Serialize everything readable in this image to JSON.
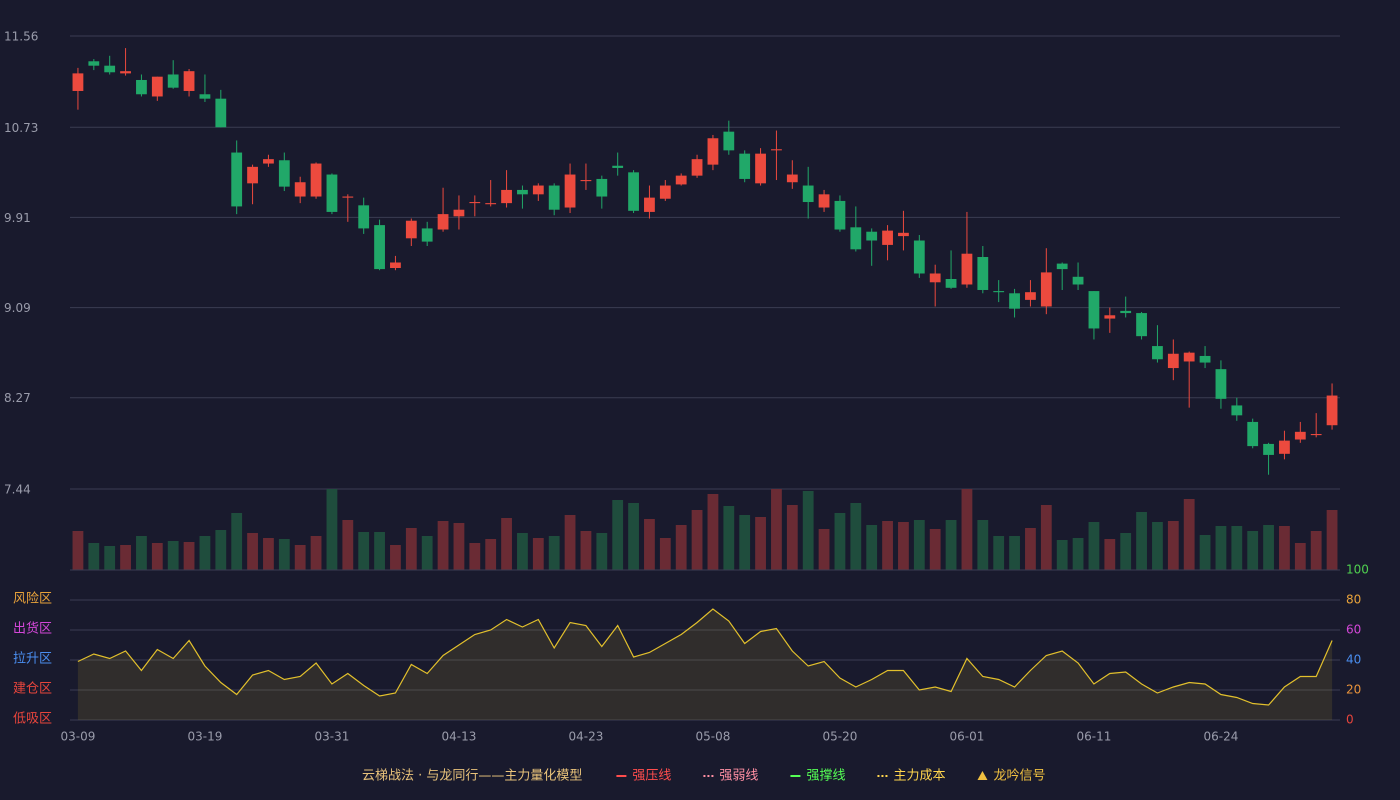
{
  "chart_data": [
    {
      "type": "candlestick",
      "categories": [
        "03-09",
        null,
        null,
        null,
        null,
        null,
        null,
        null,
        "03-19",
        null,
        null,
        null,
        null,
        null,
        null,
        null,
        "03-31",
        null,
        null,
        null,
        null,
        null,
        null,
        null,
        "04-13",
        null,
        null,
        null,
        null,
        null,
        null,
        null,
        "04-23",
        null,
        null,
        null,
        null,
        null,
        null,
        null,
        "05-08",
        null,
        null,
        null,
        null,
        null,
        null,
        null,
        "05-20",
        null,
        null,
        null,
        null,
        null,
        null,
        null,
        "06-01",
        null,
        null,
        null,
        null,
        null,
        null,
        null,
        "06-11",
        null,
        null,
        null,
        null,
        null,
        null,
        null,
        "06-24",
        null,
        null,
        null,
        null,
        null,
        null,
        null
      ],
      "open": [
        11.06,
        11.33,
        11.29,
        11.22,
        11.16,
        11.01,
        11.21,
        11.06,
        11.03,
        10.99,
        10.5,
        10.22,
        10.4,
        10.43,
        10.1,
        10.1,
        10.3,
        10.09,
        10.02,
        9.84,
        9.45,
        9.72,
        9.81,
        9.8,
        9.92,
        10.04,
        10.03,
        10.04,
        10.16,
        10.12,
        10.2,
        10.0,
        10.24,
        10.26,
        10.38,
        10.32,
        9.96,
        10.08,
        10.21,
        10.29,
        10.39,
        10.69,
        10.49,
        10.22,
        10.52,
        10.23,
        10.2,
        10.0,
        10.06,
        9.82,
        9.78,
        9.66,
        9.74,
        9.7,
        9.32,
        9.35,
        9.3,
        9.55,
        9.24,
        9.22,
        9.16,
        9.1,
        9.49,
        9.37,
        9.24,
        8.99,
        9.06,
        9.04,
        8.74,
        8.54,
        8.6,
        8.65,
        8.53,
        8.2,
        8.05,
        7.85,
        7.76,
        7.89,
        7.93,
        8.02
      ],
      "high": [
        11.27,
        11.35,
        11.38,
        11.45,
        11.21,
        11.19,
        11.34,
        11.26,
        11.21,
        11.07,
        10.61,
        10.39,
        10.48,
        10.5,
        10.28,
        10.41,
        10.31,
        10.12,
        10.09,
        9.89,
        9.56,
        9.9,
        9.87,
        10.18,
        10.11,
        10.11,
        10.25,
        10.34,
        10.2,
        10.22,
        10.22,
        10.4,
        10.4,
        10.29,
        10.5,
        10.34,
        10.2,
        10.25,
        10.31,
        10.48,
        10.66,
        10.79,
        10.52,
        10.54,
        10.7,
        10.43,
        10.37,
        10.16,
        10.11,
        10.01,
        9.81,
        9.84,
        9.97,
        9.75,
        9.48,
        9.61,
        9.96,
        9.65,
        9.34,
        9.26,
        9.34,
        9.63,
        9.5,
        9.5,
        9.24,
        9.09,
        9.19,
        9.05,
        8.93,
        8.8,
        8.69,
        8.74,
        8.61,
        8.27,
        8.08,
        7.86,
        7.97,
        8.05,
        8.13,
        8.4
      ],
      "low": [
        10.89,
        11.25,
        11.21,
        11.2,
        11.01,
        10.97,
        11.08,
        11.01,
        10.96,
        10.73,
        9.94,
        10.03,
        10.37,
        10.15,
        10.04,
        10.08,
        9.94,
        9.87,
        9.76,
        9.43,
        9.43,
        9.65,
        9.65,
        9.78,
        9.8,
        9.92,
        10.01,
        10.0,
        9.99,
        10.06,
        9.93,
        9.95,
        10.16,
        9.99,
        10.29,
        9.95,
        9.9,
        10.06,
        10.2,
        10.27,
        10.34,
        10.48,
        10.23,
        10.2,
        10.25,
        10.17,
        9.9,
        9.96,
        9.78,
        9.6,
        9.47,
        9.52,
        9.61,
        9.36,
        9.1,
        9.26,
        9.27,
        9.22,
        9.14,
        9.0,
        9.1,
        9.03,
        9.25,
        9.25,
        8.8,
        8.86,
        9.0,
        8.8,
        8.59,
        8.43,
        8.18,
        8.54,
        8.17,
        8.06,
        7.81,
        7.57,
        7.71,
        7.86,
        7.91,
        7.98
      ],
      "close": [
        11.22,
        11.29,
        11.23,
        11.24,
        11.03,
        11.19,
        11.09,
        11.24,
        10.99,
        10.73,
        10.01,
        10.37,
        10.44,
        10.19,
        10.23,
        10.4,
        9.96,
        10.1,
        9.81,
        9.44,
        9.5,
        9.88,
        9.69,
        9.94,
        9.98,
        10.05,
        10.04,
        10.16,
        10.12,
        10.2,
        9.98,
        10.3,
        10.25,
        10.1,
        10.36,
        9.97,
        10.09,
        10.2,
        10.29,
        10.44,
        10.63,
        10.52,
        10.26,
        10.49,
        10.53,
        10.3,
        10.05,
        10.12,
        9.8,
        9.62,
        9.7,
        9.79,
        9.77,
        9.4,
        9.4,
        9.27,
        9.58,
        9.25,
        9.23,
        9.08,
        9.23,
        9.41,
        9.44,
        9.3,
        8.9,
        9.02,
        9.04,
        8.83,
        8.62,
        8.67,
        8.68,
        8.59,
        8.26,
        8.11,
        7.83,
        7.75,
        7.88,
        7.96,
        7.94,
        8.29
      ],
      "up_color": "#ec4a3e",
      "down_color": "#21a869",
      "ylim": [
        7.44,
        11.56
      ],
      "yticks": [
        7.44,
        8.27,
        9.09,
        9.91,
        10.73,
        11.56
      ],
      "grid": true
    },
    {
      "type": "bar",
      "values": [
        39,
        27,
        24,
        25,
        34,
        27,
        29,
        28,
        34,
        40,
        57,
        37,
        32,
        31,
        25,
        34,
        81,
        50,
        38,
        38,
        25,
        42,
        34,
        49,
        47,
        27,
        31,
        52,
        37,
        32,
        34,
        55,
        39,
        37,
        70,
        67,
        51,
        32,
        45,
        60,
        76,
        64,
        55,
        53,
        81,
        65,
        79,
        41,
        57,
        67,
        45,
        49,
        48,
        50,
        41,
        50,
        81,
        50,
        34,
        34,
        42,
        65,
        30,
        32,
        48,
        31,
        37,
        58,
        48,
        49,
        71,
        35,
        44,
        44,
        39,
        45,
        44,
        27,
        39,
        60
      ],
      "up_color": "#6a2b34",
      "down_color": "#1f4d3d"
    },
    {
      "type": "line",
      "values": [
        39,
        44,
        41,
        46,
        33,
        47,
        41,
        53,
        36,
        25,
        17,
        30,
        33,
        27,
        29,
        38,
        24,
        31,
        23,
        16,
        18,
        37,
        31,
        43,
        50,
        57,
        60,
        67,
        62,
        67,
        48,
        65,
        63,
        49,
        63,
        42,
        45,
        51,
        57,
        65,
        74,
        66,
        51,
        59,
        61,
        46,
        36,
        39,
        28,
        22,
        27,
        33,
        33,
        20,
        22,
        19,
        41,
        29,
        27,
        22,
        33,
        43,
        46,
        38,
        24,
        31,
        32,
        24,
        18,
        22,
        25,
        24,
        17,
        15,
        11,
        10,
        22,
        29,
        29,
        53
      ],
      "color": "#e2c02c",
      "ylim": [
        0,
        100
      ],
      "yticks": [
        0,
        20,
        40,
        60,
        80,
        100
      ],
      "ytick_colors": [
        "#e8453c",
        "#e8923a",
        "#4a8ef0",
        "#d347d8",
        "#e8a23a",
        "#4fd04f"
      ],
      "zones": [
        {
          "label": "风险区",
          "value": 80,
          "color": "#e8a23a"
        },
        {
          "label": "出货区",
          "value": 60,
          "color": "#d347d8"
        },
        {
          "label": "拉升区",
          "value": 40,
          "color": "#4a8ef0"
        },
        {
          "label": "建仓区",
          "value": 20,
          "color": "#e8453c"
        },
        {
          "label": "低吸区",
          "value": 0,
          "color": "#e8453c"
        }
      ],
      "grid": true
    }
  ],
  "legend": {
    "title": "云梯战法 · 与龙同行——主力量化模型",
    "title_color": "#e8c27a",
    "items": [
      {
        "name": "强压线",
        "color": "#ff4d4d",
        "style": "solid"
      },
      {
        "name": "强弱线",
        "color": "#ff8fa3",
        "style": "dashed"
      },
      {
        "name": "强撑线",
        "color": "#55ff55",
        "style": "solid"
      },
      {
        "name": "主力成本",
        "color": "#ffd54d",
        "style": "dashed"
      },
      {
        "name": "龙吟信号",
        "color": "#f0c040",
        "style": "triangle"
      }
    ]
  }
}
